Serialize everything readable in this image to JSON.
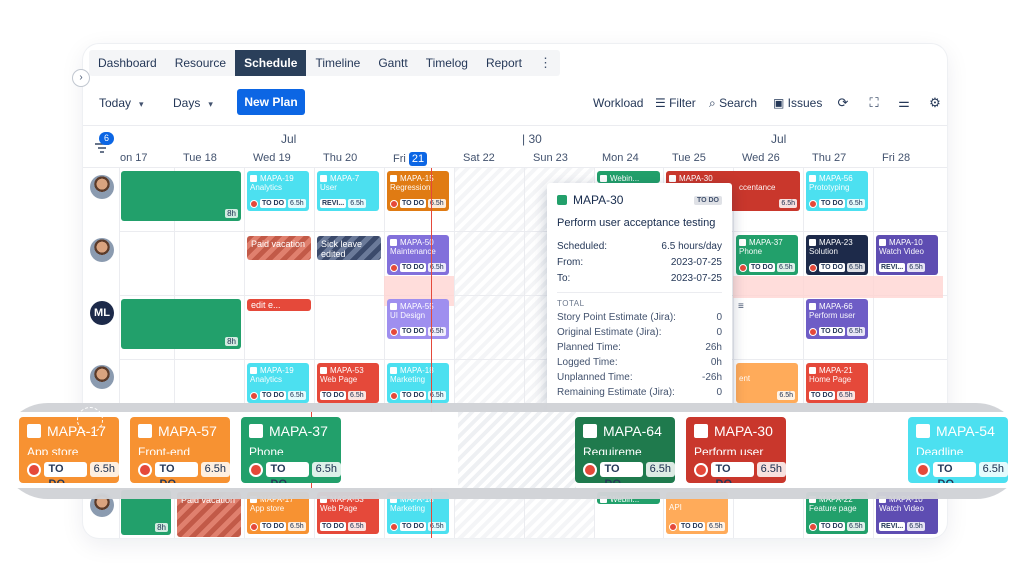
{
  "tabs": [
    "Dashboard",
    "Resource",
    "Schedule",
    "Timeline",
    "Gantt",
    "Timelog",
    "Report"
  ],
  "tabs_more": "⋮",
  "collapse_glyph": "›",
  "toolbar": {
    "today": "Today",
    "days": "Days",
    "new_plan": "New Plan",
    "workload": "Workload",
    "filter": "Filter",
    "search": "Search",
    "issues": "Issues"
  },
  "header": {
    "filter_count": "6",
    "month_left": "Jul",
    "week_marker": "30",
    "month_right": "Jul",
    "days": [
      "on 17",
      "Tue 18",
      "Wed 19",
      "Thu 20",
      "Fri",
      "Sat 22",
      "Sun 23",
      "Mon 24",
      "Tue 25",
      "Wed 26",
      "Thu 27",
      "Fri 28"
    ],
    "today_num": "21"
  },
  "avatars": {
    "ml": "ML"
  },
  "green_hours": [
    "8h",
    "8h",
    "8h"
  ],
  "leaves": {
    "paid1": "Paid vacation",
    "sick": "Sick leave edited",
    "edit": "edit e...",
    "paid2": "Paid vacation"
  },
  "tasks": [
    {
      "key": "MAPA-19",
      "title": "Analytics",
      "status": "TO DO",
      "hours": "6.5h"
    },
    {
      "key": "MAPA-7",
      "title": "User",
      "status": "REVI...",
      "hours": "6.5h"
    },
    {
      "key": "MAPA-15",
      "title": "Regression",
      "status": "TO DO",
      "hours": "6.5h"
    },
    {
      "key": "MAPA-30",
      "title": "ccentance",
      "status": "",
      "hours": "6.5h"
    },
    {
      "key": "MAPA-56",
      "title": "Prototyping",
      "status": "TO DO",
      "hours": "6.5h"
    },
    {
      "key": "MAPA-50",
      "title": "Maintenance",
      "status": "TO DO",
      "hours": "6.5h"
    },
    {
      "key": "MAPA-37",
      "title": "Phone",
      "status": "TO DO",
      "hours": "6.5h"
    },
    {
      "key": "MAPA-23",
      "title": "Solution",
      "status": "TO DO",
      "hours": "6.5h"
    },
    {
      "key": "MAPA-10",
      "title": "Watch Video",
      "status": "REVI...",
      "hours": "6.5h"
    },
    {
      "key": "MAPA-55",
      "title": "UI Design",
      "status": "TO DO",
      "hours": "6.5h"
    },
    {
      "key": "MAPA-66",
      "title": "Perform user",
      "status": "TO DO",
      "hours": "6.5h"
    },
    {
      "key": "MAPA-19",
      "title": "Analytics",
      "status": "TO DO",
      "hours": "6.5h"
    },
    {
      "key": "MAPA-53",
      "title": "Web Page",
      "status": "TO DO",
      "hours": "6.5h"
    },
    {
      "key": "MAPA-18",
      "title": "Marketing",
      "status": "TO DO",
      "hours": "6.5h"
    },
    {
      "key": "MAPA-21",
      "title": "Home Page",
      "status": "TO DO",
      "hours": "6.5h"
    },
    {
      "key": "MAPA-17",
      "title": "App store",
      "status": "TO DO",
      "hours": "6.5h"
    },
    {
      "key": "MAPA-53",
      "title": "Web Page",
      "status": "TO DO",
      "hours": "6.5h"
    },
    {
      "key": "MAPA-18",
      "title": "Marketing",
      "status": "TO DO",
      "hours": "6.5h"
    },
    {
      "key": "MAPA-22",
      "title": "Feature page",
      "status": "TO DO",
      "hours": "6.5h"
    },
    {
      "key": "MAPA-10",
      "title": "Watch Video",
      "status": "REVI...",
      "hours": "6.5h"
    },
    {
      "key": "",
      "title": "API",
      "status": "TO DO",
      "hours": "6.5h"
    }
  ],
  "webinar": "Webin...",
  "webinar2": "Webin...",
  "partial_hours": "6.5h",
  "partial_text": "ent",
  "tooltip": {
    "key": "MAPA-30",
    "badge": "TO DO",
    "title": "Perform user acceptance testing",
    "scheduled_label": "Scheduled:",
    "scheduled": "6.5 hours/day",
    "from_label": "From:",
    "from": "2023-07-25",
    "to_label": "To:",
    "to": "2023-07-25",
    "total": "TOTAL",
    "rows": [
      {
        "label": "Story Point Estimate (Jira):",
        "value": "0"
      },
      {
        "label": "Original Estimate (Jira):",
        "value": "0"
      },
      {
        "label": "Planned Time:",
        "value": "26h"
      },
      {
        "label": "Logged Time:",
        "value": "0h"
      },
      {
        "label": "Unplanned Time:",
        "value": "-26h"
      },
      {
        "label": "Remaining Estimate (Jira):",
        "value": "0"
      }
    ]
  },
  "band": [
    {
      "key": "MAPA-17",
      "title": "App store",
      "status": "TO DO",
      "hours": "6.5h",
      "color": "#f79232",
      "keycolor": "#ffe0b0"
    },
    {
      "key": "MAPA-57",
      "title": "Front-end",
      "status": "TO DO",
      "hours": "6.5h",
      "color": "#f79232",
      "keycolor": "#ffffff"
    },
    {
      "key": "MAPA-37",
      "title": "Phone",
      "status": "TO DO",
      "hours": "6.5h",
      "color": "#22a06b",
      "keycolor": "#ffffff"
    },
    {
      "key": "MAPA-64",
      "title": "Requireme",
      "status": "TO DO",
      "hours": "6.5h",
      "color": "#1f7a4d",
      "keycolor": "#ffffff"
    },
    {
      "key": "MAPA-30",
      "title": "Perform user",
      "status": "TO DO",
      "hours": "6.5h",
      "color": "#c9372c",
      "keycolor": "#ffffff"
    },
    {
      "key": "MAPA-54",
      "title": "Deadline",
      "status": "TO DO",
      "hours": "6.5h",
      "color": "#4ce0f0",
      "keycolor": "#ffffff"
    }
  ],
  "colors": {
    "accent": "#0c66e4",
    "orange": "#f79232",
    "teal": "#4ce0f0",
    "green": "#22a06b",
    "red": "#e5493a",
    "purple": "#8270db",
    "navy": "#2a3f5a"
  }
}
